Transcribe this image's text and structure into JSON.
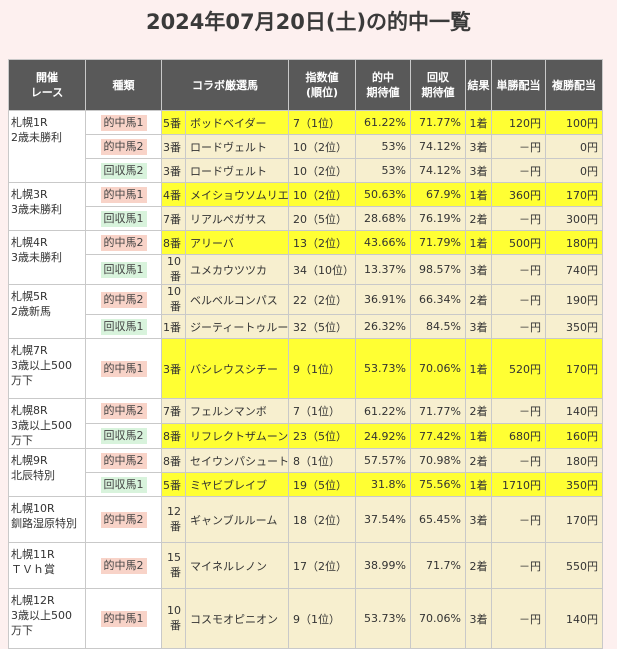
{
  "title": "2024年07月20日(土)の的中一覧",
  "headers": {
    "race": [
      "開催",
      "レース"
    ],
    "type": "種類",
    "horse": "コラボ厳選馬",
    "index": [
      "指数値",
      "(順位)"
    ],
    "hit_exp": [
      "的中",
      "期待値"
    ],
    "rec_exp": [
      "回収",
      "期待値"
    ],
    "result": "結果",
    "win": "単勝配当",
    "place": "複勝配当"
  },
  "rows": [
    {
      "race": [
        "札幌1R",
        "2歳未勝利"
      ],
      "span": 3,
      "type": "的中馬1",
      "kind": "hit",
      "num": "5番",
      "name": "ボッドベイダー",
      "index": "7（1位）",
      "hit": "61.22%",
      "rec": "71.77%",
      "res": "1着",
      "win": "120円",
      "place": "100円",
      "hl": true
    },
    {
      "type": "的中馬2",
      "kind": "hit",
      "num": "3番",
      "name": "ロードヴェルト",
      "index": "10（2位）",
      "hit": "53%",
      "rec": "74.12%",
      "res": "3着",
      "win": "－円",
      "place": "0円",
      "hl": false
    },
    {
      "type": "回収馬2",
      "kind": "rec",
      "num": "3番",
      "name": "ロードヴェルト",
      "index": "10（2位）",
      "hit": "53%",
      "rec": "74.12%",
      "res": "3着",
      "win": "－円",
      "place": "0円",
      "hl": false
    },
    {
      "race": [
        "札幌3R",
        "3歳未勝利"
      ],
      "span": 2,
      "type": "的中馬1",
      "kind": "hit",
      "num": "4番",
      "name": "メイショウソムリエ",
      "index": "10（2位）",
      "hit": "50.63%",
      "rec": "67.9%",
      "res": "1着",
      "win": "360円",
      "place": "170円",
      "hl": true
    },
    {
      "type": "回収馬1",
      "kind": "rec",
      "num": "7番",
      "name": "リアルペガサス",
      "index": "20（5位）",
      "hit": "28.68%",
      "rec": "76.19%",
      "res": "2着",
      "win": "－円",
      "place": "300円",
      "hl": false
    },
    {
      "race": [
        "札幌4R",
        "3歳未勝利"
      ],
      "span": 2,
      "type": "的中馬2",
      "kind": "hit",
      "num": "8番",
      "name": "アリーバ",
      "index": "13（2位）",
      "hit": "43.66%",
      "rec": "71.79%",
      "res": "1着",
      "win": "500円",
      "place": "180円",
      "hl": true
    },
    {
      "type": "回収馬1",
      "kind": "rec",
      "num": "10番",
      "name": "ユメカウツツカ",
      "index": "34（10位）",
      "hit": "13.37%",
      "rec": "98.57%",
      "res": "3着",
      "win": "－円",
      "place": "740円",
      "hl": false
    },
    {
      "race": [
        "札幌5R",
        "2歳新馬"
      ],
      "span": 2,
      "type": "的中馬2",
      "kind": "hit",
      "num": "10番",
      "name": "ベルベルコンパス",
      "index": "22（2位）",
      "hit": "36.91%",
      "rec": "66.34%",
      "res": "2着",
      "win": "－円",
      "place": "190円",
      "hl": false
    },
    {
      "type": "回収馬1",
      "kind": "rec",
      "num": "1番",
      "name": "ジーティートゥルー",
      "index": "32（5位）",
      "hit": "26.32%",
      "rec": "84.5%",
      "res": "3着",
      "win": "－円",
      "place": "350円",
      "hl": false
    },
    {
      "race": [
        "札幌7R",
        "3歳以上500",
        "万下"
      ],
      "span": 1,
      "tall": true,
      "type": "的中馬1",
      "kind": "hit",
      "num": "3番",
      "name": "バシレウスシチー",
      "index": "9（1位）",
      "hit": "53.73%",
      "rec": "70.06%",
      "res": "1着",
      "win": "520円",
      "place": "170円",
      "hl": true
    },
    {
      "race": [
        "札幌8R",
        "3歳以上500",
        "万下"
      ],
      "span": 2,
      "type": "的中馬2",
      "kind": "hit",
      "num": "7番",
      "name": "フェルンマンボ",
      "index": "7（1位）",
      "hit": "61.22%",
      "rec": "71.77%",
      "res": "2着",
      "win": "－円",
      "place": "140円",
      "hl": false
    },
    {
      "type": "回収馬2",
      "kind": "rec",
      "num": "8番",
      "name": "リフレクトザムーン",
      "index": "23（5位）",
      "hit": "24.92%",
      "rec": "77.42%",
      "res": "1着",
      "win": "680円",
      "place": "160円",
      "hl": true
    },
    {
      "race": [
        "札幌9R",
        "北辰特別"
      ],
      "span": 2,
      "type": "的中馬2",
      "kind": "hit",
      "num": "8番",
      "name": "セイウンパシュート",
      "index": "8（1位）",
      "hit": "57.57%",
      "rec": "70.98%",
      "res": "2着",
      "win": "－円",
      "place": "180円",
      "hl": false
    },
    {
      "type": "回収馬1",
      "kind": "rec",
      "num": "5番",
      "name": "ミヤビブレイブ",
      "index": "19（5位）",
      "hit": "31.8%",
      "rec": "75.56%",
      "res": "1着",
      "win": "1710円",
      "place": "350円",
      "hl": true
    },
    {
      "race": [
        "札幌10R",
        "釧路湿原特別"
      ],
      "span": 1,
      "tall2": true,
      "type": "的中馬2",
      "kind": "hit",
      "num": "12番",
      "name": "ギャンブルルーム",
      "index": "18（2位）",
      "hit": "37.54%",
      "rec": "65.45%",
      "res": "3着",
      "win": "－円",
      "place": "170円",
      "hl": false
    },
    {
      "race": [
        "札幌11R",
        "ＴＶｈ賞"
      ],
      "span": 1,
      "tall2": true,
      "type": "的中馬2",
      "kind": "hit",
      "num": "15番",
      "name": "マイネルレノン",
      "index": "17（2位）",
      "hit": "38.99%",
      "rec": "71.7%",
      "res": "2着",
      "win": "－円",
      "place": "550円",
      "hl": false
    },
    {
      "race": [
        "札幌12R",
        "3歳以上500",
        "万下"
      ],
      "span": 1,
      "tall": true,
      "type": "的中馬1",
      "kind": "hit",
      "num": "10番",
      "name": "コスモオピニオン",
      "index": "9（1位）",
      "hit": "53.73%",
      "rec": "70.06%",
      "res": "3着",
      "win": "－円",
      "place": "140円",
      "hl": false
    }
  ]
}
